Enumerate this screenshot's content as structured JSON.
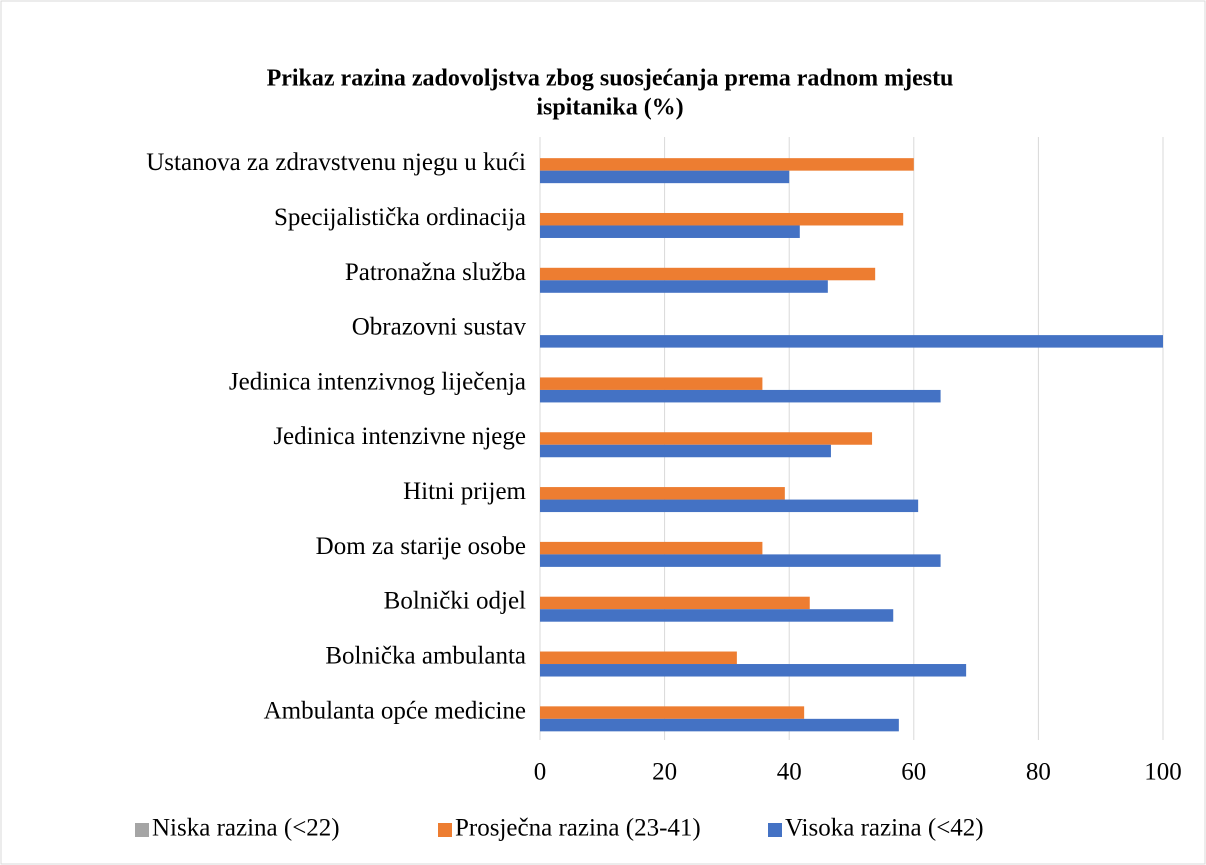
{
  "chart_data": {
    "type": "barh",
    "title": [
      "Prikaz razina zadovoljstva zbog suosjećanja prema radnom mjestu",
      "ispitanika (%)"
    ],
    "categories": [
      "Ambulanta opće medicine",
      "Bolnička ambulanta",
      "Bolnički odjel",
      "Dom za starije osobe",
      "Hitni prijem",
      "Jedinica intenzivne njege",
      "Jedinica intenzivnog liječenja",
      "Obrazovni sustav",
      "Patronažna služba",
      "Specijalistička ordinacija",
      "Ustanova za zdravstvenu njegu u kući"
    ],
    "series": [
      {
        "name": "Niska razina (<22)",
        "color": "#a5a5a5",
        "values": [
          0,
          0,
          0,
          0,
          0,
          0,
          0,
          0,
          0,
          0,
          0
        ]
      },
      {
        "name": "Prosječna razina (23-41)",
        "color": "#ed7d31",
        "values": [
          42.4,
          31.6,
          43.3,
          35.7,
          39.3,
          53.3,
          35.7,
          0,
          53.8,
          58.3,
          60
        ]
      },
      {
        "name": "Visoka razina (<42)",
        "color": "#4472c4",
        "values": [
          57.6,
          68.4,
          56.7,
          64.3,
          60.7,
          46.7,
          64.3,
          100,
          46.2,
          41.7,
          40
        ]
      }
    ],
    "xlim": [
      0,
      100
    ],
    "xticks": [
      0,
      20,
      40,
      60,
      80,
      100
    ],
    "grid": true,
    "legend": "bottom"
  }
}
